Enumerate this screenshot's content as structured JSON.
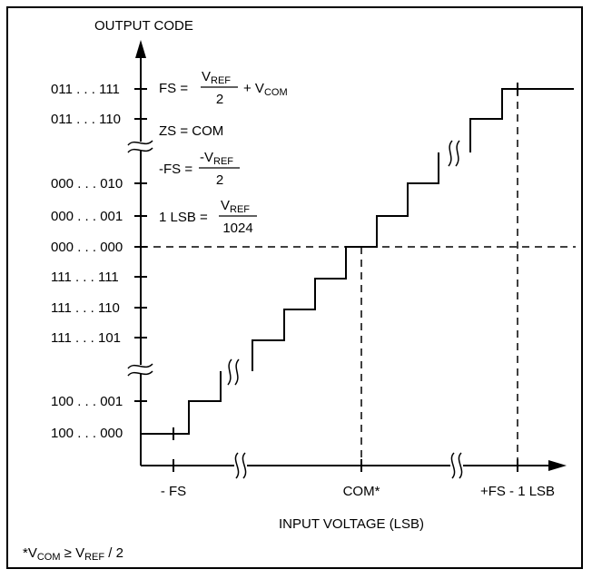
{
  "y_axis_title": "OUTPUT CODE",
  "x_axis_title": "INPUT VOLTAGE (LSB)",
  "y_ticks": [
    "011 . . . 111",
    "011 . . . 110",
    "000 . . . 010",
    "000 . . . 001",
    "000 . . . 000",
    "111 . . . 111",
    "111 . . . 110",
    "111 . . . 101",
    "100 . . . 001",
    "100 . . . 000"
  ],
  "x_ticks": [
    "- FS",
    "COM*",
    "+FS - 1 LSB"
  ],
  "equations": {
    "fs_lhs": "FS =",
    "fs_num_v": "V",
    "fs_num_sub": "REF",
    "fs_den": "2",
    "fs_plus": "+ V",
    "fs_plus_sub": "COM",
    "zs": "ZS = COM",
    "nfs_lhs": "-FS =",
    "nfs_num_v": "-V",
    "nfs_num_sub": "REF",
    "nfs_den": "2",
    "lsb_lhs": "1 LSB =",
    "lsb_num_v": "V",
    "lsb_num_sub": "REF",
    "lsb_den": "1024"
  },
  "footnote": {
    "a": "*V",
    "a_sub": "COM",
    "b": " ≥ V",
    "b_sub": "REF",
    "c": " / 2"
  }
}
